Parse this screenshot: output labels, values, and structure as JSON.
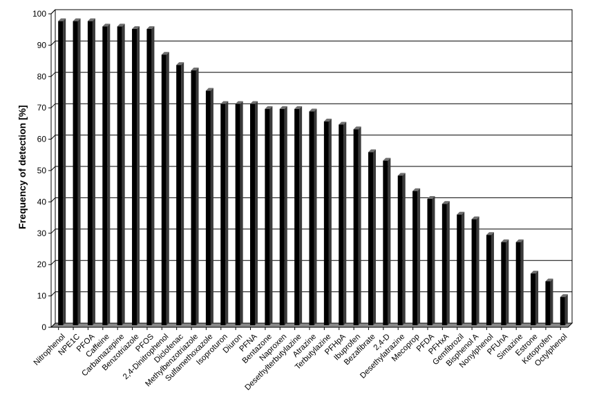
{
  "chart_data": {
    "type": "bar",
    "title": "",
    "xlabel": "",
    "ylabel": "Frequency of detection [%]",
    "ylim": [
      0,
      100
    ],
    "yticks": [
      0,
      10,
      20,
      30,
      40,
      50,
      60,
      70,
      80,
      90,
      100
    ],
    "grid": true,
    "legend": "none",
    "categories": [
      "Nitrophenol",
      "NPE1C",
      "PFOA",
      "Caffeine",
      "Carbamazepine",
      "Benzotriazole",
      "PFOS",
      "2,4-Dinitrophenol",
      "Diclofenac",
      "Methylbenzotriazole",
      "Sulfamethoxazole",
      "Isoproturon",
      "Diuron",
      "PFNA",
      "Bentazone",
      "Naproxen",
      "Desethylterbutylazine",
      "Atrazine",
      "Terbutylazine",
      "PFHpA",
      "Ibuprofen",
      "Bezafibrate",
      "2,4-D",
      "Desethylatrazine",
      "Mecoprop",
      "PFDA",
      "PFHxA",
      "Gemfibrozil",
      "Bisphenol A",
      "Nonylphenol",
      "PFUnA",
      "Simazine",
      "Estrone",
      "Ketoprofen",
      "Octylphenol"
    ],
    "values": [
      97,
      97,
      97,
      95.3,
      95.3,
      94.5,
      94.5,
      86.3,
      83,
      81.3,
      74.8,
      70.6,
      70.6,
      70.6,
      69,
      69,
      69,
      68.2,
      65,
      64,
      62.5,
      55.2,
      52.5,
      47.7,
      42.8,
      40.3,
      38.7,
      35.3,
      33.8,
      28.8,
      26.5,
      26.5,
      16.5,
      14,
      9
    ],
    "colors": {
      "bar_front": "#000000",
      "bar_side": "#3a3a3a",
      "bar_top": "#6f6f6f",
      "grid": "#000000",
      "floor": "#8a8a8a",
      "axis": "#000000"
    }
  }
}
